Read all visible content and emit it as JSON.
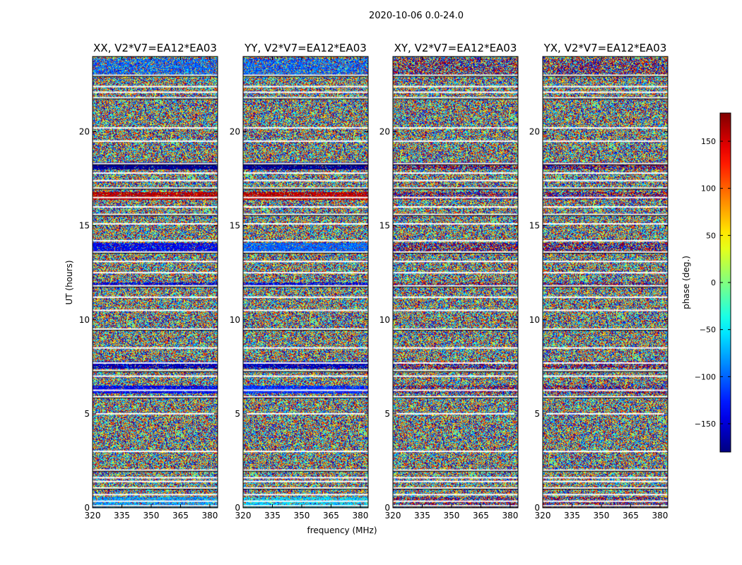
{
  "chart_data": {
    "type": "heatmap",
    "title": "2020-10-06 0.0-24.0",
    "xlabel": "frequency (MHz)",
    "ylabel": "UT (hours)",
    "xlim": [
      320,
      384
    ],
    "ylim": [
      0,
      24
    ],
    "x_ticks": [
      320,
      335,
      350,
      365,
      380
    ],
    "y_ticks": [
      0,
      5,
      10,
      15,
      20
    ],
    "panels": [
      {
        "title": "XX, V2*V7=EA12*EA03",
        "pol": "XX"
      },
      {
        "title": "YY, V2*V7=EA12*EA03",
        "pol": "YY"
      },
      {
        "title": "XY, V2*V7=EA12*EA03",
        "pol": "XY"
      },
      {
        "title": "YX, V2*V7=EA12*EA03",
        "pol": "YX"
      }
    ],
    "colorbar": {
      "label": "phase (deg.)",
      "range": [
        -180,
        180
      ],
      "ticks": [
        150,
        100,
        50,
        0,
        -50,
        -100,
        -150
      ],
      "tick_labels": [
        "150",
        "100",
        "50",
        "0",
        "−50",
        "−100",
        "−150"
      ],
      "colormap": "jet"
    },
    "flagged_ut_hours": [
      0.1,
      0.35,
      0.7,
      1.05,
      1.4,
      1.6,
      2.0,
      3.0,
      5.0,
      5.9,
      6.25,
      7.0,
      7.3,
      7.7,
      8.5,
      9.5,
      10.5,
      11.2,
      11.8,
      12.5,
      13.1,
      13.6,
      14.2,
      15.1,
      15.6,
      16.0,
      16.5,
      17.0,
      17.4,
      17.8,
      18.3,
      19.5,
      20.2,
      21.8,
      22.1,
      22.4,
      23.0
    ],
    "structured_bands": [
      {
        "ut_range": [
          0.0,
          0.6
        ],
        "mean_phase": {
          "XX": -80,
          "YY": -60
        },
        "coherence": 0.7
      },
      {
        "ut_range": [
          6.1,
          6.5
        ],
        "mean_phase": {
          "XX": -140,
          "YY": -120
        },
        "coherence": 0.85
      },
      {
        "ut_range": [
          7.4,
          7.8
        ],
        "mean_phase": {
          "XX": -160,
          "YY": -160
        },
        "coherence": 0.8
      },
      {
        "ut_range": [
          11.8,
          12.0
        ],
        "mean_phase": {
          "XX": -150,
          "YY": -150
        },
        "coherence": 0.7
      },
      {
        "ut_range": [
          13.6,
          14.1
        ],
        "mean_phase": {
          "XX": -140,
          "YY": -100
        },
        "coherence": 0.8
      },
      {
        "ut_range": [
          16.4,
          16.8
        ],
        "mean_phase": {
          "XX": 160,
          "YY": 160
        },
        "coherence": 0.85
      },
      {
        "ut_range": [
          18.0,
          18.4
        ],
        "mean_phase": {
          "XX": -175,
          "YY": -175
        },
        "coherence": 0.9
      },
      {
        "ut_range": [
          23.0,
          23.9
        ],
        "mean_phase": {
          "XX": -100,
          "YY": -100
        },
        "coherence": 0.55
      }
    ]
  }
}
